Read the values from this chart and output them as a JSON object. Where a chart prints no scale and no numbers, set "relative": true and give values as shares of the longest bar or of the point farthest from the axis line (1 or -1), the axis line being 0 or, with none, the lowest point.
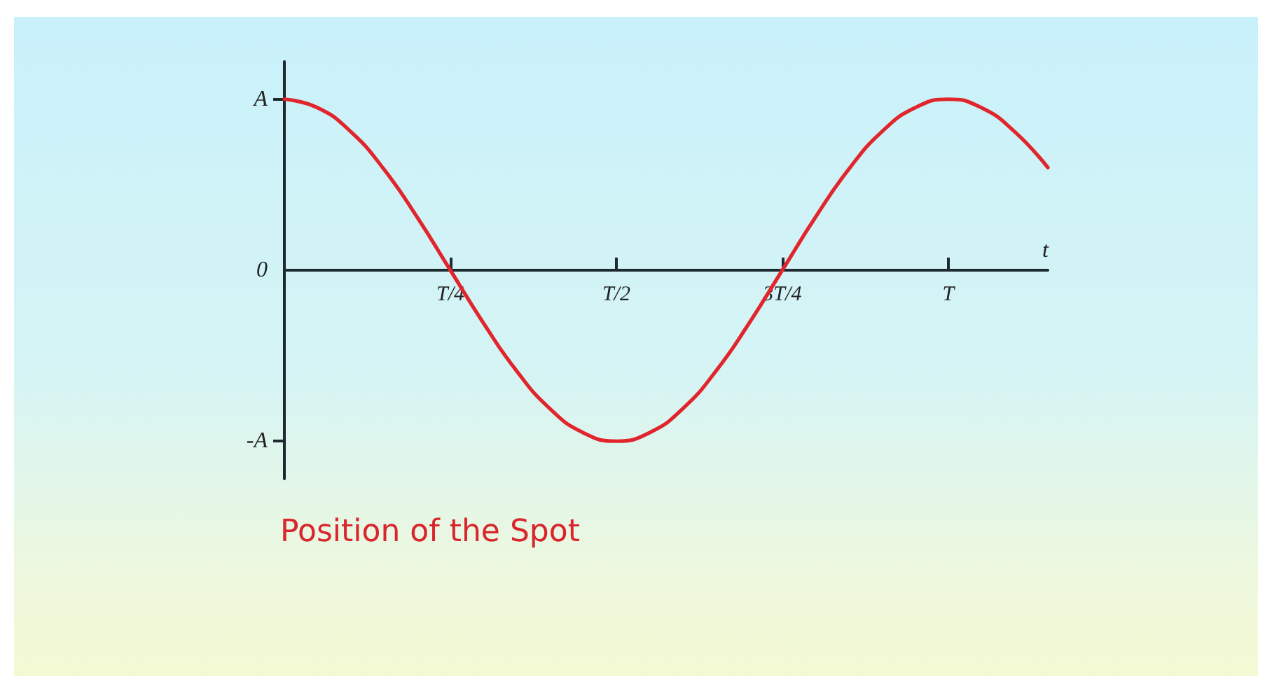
{
  "chart_data": {
    "type": "line",
    "title": "Position of the Spot",
    "xlabel": "t",
    "relative": true,
    "categories": [
      null,
      null,
      null,
      null,
      null,
      "T/4",
      null,
      null,
      null,
      null,
      "T/2",
      null,
      null,
      null,
      null,
      "3T/4",
      null,
      null,
      null,
      null,
      "T",
      null,
      null,
      null
    ],
    "series": [
      {
        "color": "#e0262c",
        "values": [
          1.0,
          0.95,
          0.81,
          0.59,
          0.31,
          0.0,
          -0.31,
          -0.59,
          -0.81,
          -0.95,
          -1.0,
          -0.95,
          -0.81,
          -0.59,
          -0.31,
          0.0,
          0.31,
          0.59,
          0.81,
          0.95,
          1.0,
          0.95,
          0.81,
          0.6
        ]
      }
    ],
    "annotations": [
      "A",
      "0",
      "-A"
    ]
  }
}
